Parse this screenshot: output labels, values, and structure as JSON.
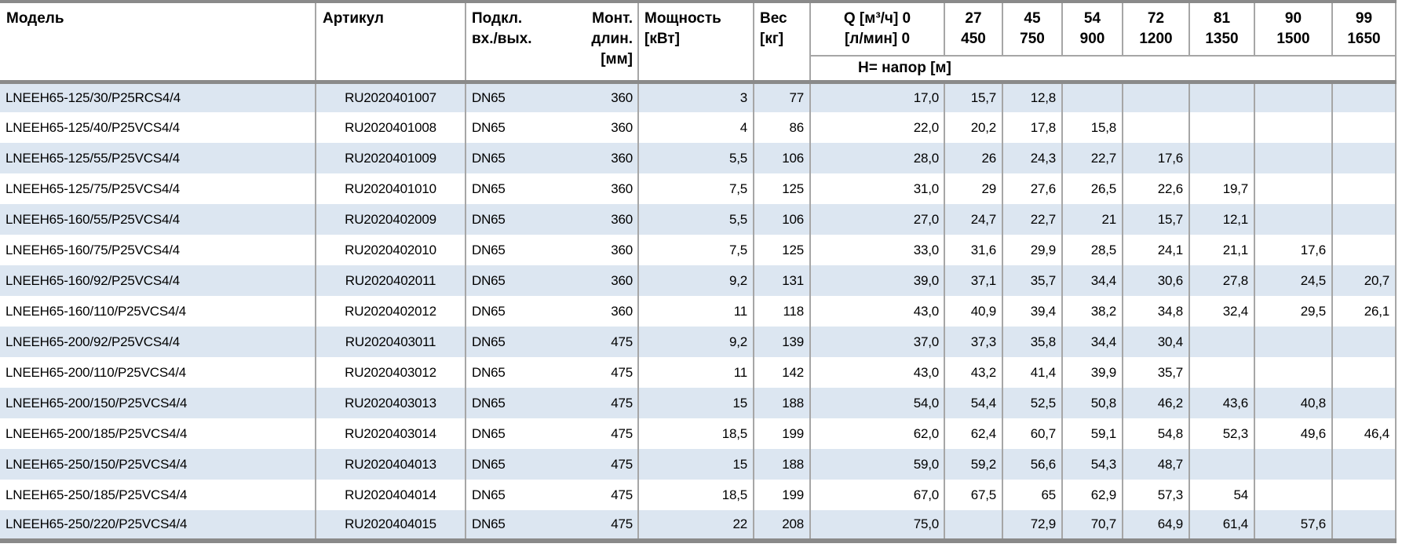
{
  "colors": {
    "stripe_blue": "#dce6f1",
    "thin_border": "#a6a6a6",
    "thick_border": "#8a8a8a",
    "text": "#000000",
    "background": "#ffffff"
  },
  "table": {
    "headers": {
      "model": "Модель",
      "article": "Артикул",
      "connection_line1": "Подкл.",
      "connection_line2": "вх./вых.",
      "mount_line1": "Монт.",
      "mount_line2": "длин.",
      "mount_line3": "[мм]",
      "power_line1": "Мощность",
      "power_line2": "[кВт]",
      "weight_line1": "Вес",
      "weight_line2": "[кг]",
      "q_line1": "Q [м³/ч] 0",
      "q_line2": "[л/мин] 0",
      "head_row": "H= напор [м]",
      "flow_columns": [
        {
          "m3h": "27",
          "lmin": "450"
        },
        {
          "m3h": "45",
          "lmin": "750"
        },
        {
          "m3h": "54",
          "lmin": "900"
        },
        {
          "m3h": "72",
          "lmin": "1200"
        },
        {
          "m3h": "81",
          "lmin": "1350"
        },
        {
          "m3h": "90",
          "lmin": "1500"
        },
        {
          "m3h": "99",
          "lmin": "1650"
        }
      ]
    },
    "rows": [
      {
        "model": "LNEEH65-125/30/P25RCS4/4",
        "article": "RU2020401007",
        "connection": "DN65",
        "mount_length": "360",
        "power": "3",
        "weight": "77",
        "heads": [
          "17,0",
          "15,7",
          "12,8",
          "",
          "",
          "",
          "",
          ""
        ]
      },
      {
        "model": "LNEEH65-125/40/P25VCS4/4",
        "article": "RU2020401008",
        "connection": "DN65",
        "mount_length": "360",
        "power": "4",
        "weight": "86",
        "heads": [
          "22,0",
          "20,2",
          "17,8",
          "15,8",
          "",
          "",
          "",
          ""
        ]
      },
      {
        "model": "LNEEH65-125/55/P25VCS4/4",
        "article": "RU2020401009",
        "connection": "DN65",
        "mount_length": "360",
        "power": "5,5",
        "weight": "106",
        "heads": [
          "28,0",
          "26",
          "24,3",
          "22,7",
          "17,6",
          "",
          "",
          ""
        ]
      },
      {
        "model": "LNEEH65-125/75/P25VCS4/4",
        "article": "RU2020401010",
        "connection": "DN65",
        "mount_length": "360",
        "power": "7,5",
        "weight": "125",
        "heads": [
          "31,0",
          "29",
          "27,6",
          "26,5",
          "22,6",
          "19,7",
          "",
          ""
        ]
      },
      {
        "model": "LNEEH65-160/55/P25VCS4/4",
        "article": "RU2020402009",
        "connection": "DN65",
        "mount_length": "360",
        "power": "5,5",
        "weight": "106",
        "heads": [
          "27,0",
          "24,7",
          "22,7",
          "21",
          "15,7",
          "12,1",
          "",
          ""
        ]
      },
      {
        "model": "LNEEH65-160/75/P25VCS4/4",
        "article": "RU2020402010",
        "connection": "DN65",
        "mount_length": "360",
        "power": "7,5",
        "weight": "125",
        "heads": [
          "33,0",
          "31,6",
          "29,9",
          "28,5",
          "24,1",
          "21,1",
          "17,6",
          ""
        ]
      },
      {
        "model": "LNEEH65-160/92/P25VCS4/4",
        "article": "RU2020402011",
        "connection": "DN65",
        "mount_length": "360",
        "power": "9,2",
        "weight": "131",
        "heads": [
          "39,0",
          "37,1",
          "35,7",
          "34,4",
          "30,6",
          "27,8",
          "24,5",
          "20,7"
        ]
      },
      {
        "model": "LNEEH65-160/110/P25VCS4/4",
        "article": "RU2020402012",
        "connection": "DN65",
        "mount_length": "360",
        "power": "11",
        "weight": "118",
        "heads": [
          "43,0",
          "40,9",
          "39,4",
          "38,2",
          "34,8",
          "32,4",
          "29,5",
          "26,1"
        ]
      },
      {
        "model": "LNEEH65-200/92/P25VCS4/4",
        "article": "RU2020403011",
        "connection": "DN65",
        "mount_length": "475",
        "power": "9,2",
        "weight": "139",
        "heads": [
          "37,0",
          "37,3",
          "35,8",
          "34,4",
          "30,4",
          "",
          "",
          ""
        ]
      },
      {
        "model": "LNEEH65-200/110/P25VCS4/4",
        "article": "RU2020403012",
        "connection": "DN65",
        "mount_length": "475",
        "power": "11",
        "weight": "142",
        "heads": [
          "43,0",
          "43,2",
          "41,4",
          "39,9",
          "35,7",
          "",
          "",
          ""
        ]
      },
      {
        "model": "LNEEH65-200/150/P25VCS4/4",
        "article": "RU2020403013",
        "connection": "DN65",
        "mount_length": "475",
        "power": "15",
        "weight": "188",
        "heads": [
          "54,0",
          "54,4",
          "52,5",
          "50,8",
          "46,2",
          "43,6",
          "40,8",
          ""
        ]
      },
      {
        "model": "LNEEH65-200/185/P25VCS4/4",
        "article": "RU2020403014",
        "connection": "DN65",
        "mount_length": "475",
        "power": "18,5",
        "weight": "199",
        "heads": [
          "62,0",
          "62,4",
          "60,7",
          "59,1",
          "54,8",
          "52,3",
          "49,6",
          "46,4"
        ]
      },
      {
        "model": "LNEEH65-250/150/P25VCS4/4",
        "article": "RU2020404013",
        "connection": "DN65",
        "mount_length": "475",
        "power": "15",
        "weight": "188",
        "heads": [
          "59,0",
          "59,2",
          "56,6",
          "54,3",
          "48,7",
          "",
          "",
          ""
        ]
      },
      {
        "model": "LNEEH65-250/185/P25VCS4/4",
        "article": "RU2020404014",
        "connection": "DN65",
        "mount_length": "475",
        "power": "18,5",
        "weight": "199",
        "heads": [
          "67,0",
          "67,5",
          "65",
          "62,9",
          "57,3",
          "54",
          "",
          ""
        ]
      },
      {
        "model": "LNEEH65-250/220/P25VCS4/4",
        "article": "RU2020404015",
        "connection": "DN65",
        "mount_length": "475",
        "power": "22",
        "weight": "208",
        "heads": [
          "75,0",
          "",
          "72,9",
          "70,7",
          "64,9",
          "61,4",
          "57,6",
          ""
        ]
      }
    ]
  }
}
